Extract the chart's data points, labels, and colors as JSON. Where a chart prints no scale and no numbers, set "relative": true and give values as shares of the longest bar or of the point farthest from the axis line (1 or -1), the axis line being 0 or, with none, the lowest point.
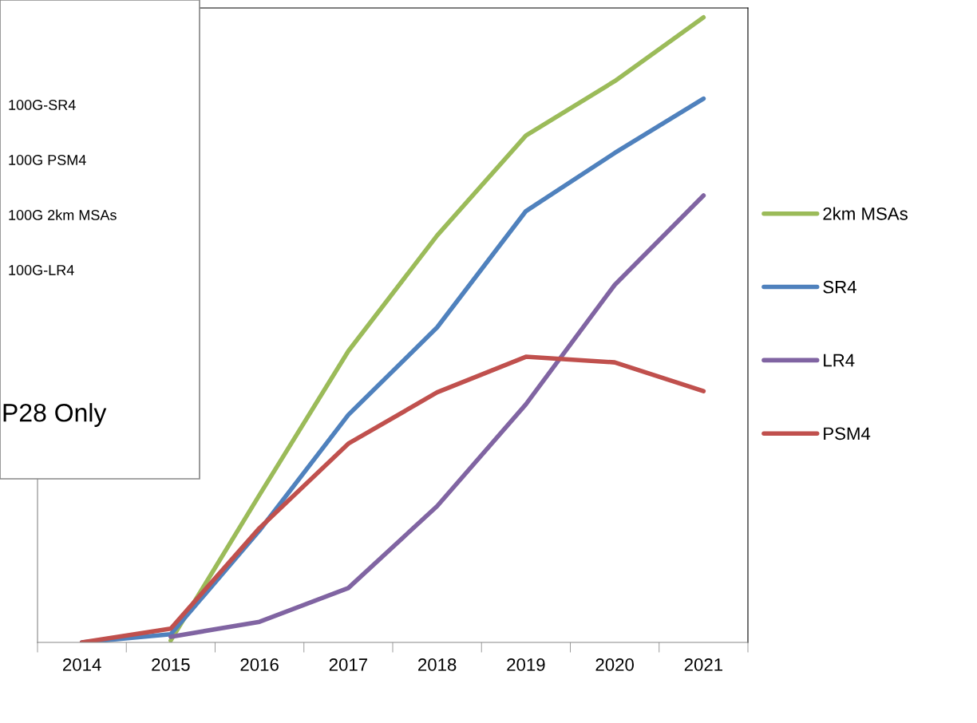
{
  "chart_data": {
    "type": "line",
    "relative": true,
    "categories": [
      "2014",
      "2015",
      "2016",
      "2017",
      "2018",
      "2019",
      "2020",
      "2021"
    ],
    "series": [
      {
        "name": "2km MSAs",
        "color": "#9bbb59",
        "values": [
          null,
          0.003,
          0.236,
          0.466,
          0.651,
          0.811,
          0.898,
          1
        ]
      },
      {
        "name": "SR4",
        "color": "#4f81bd",
        "values": [
          0,
          0.013,
          0.179,
          0.364,
          0.504,
          0.69,
          0.783,
          0.87
        ]
      },
      {
        "name": "LR4",
        "color": "#8064a2",
        "values": [
          null,
          0.009,
          0.033,
          0.087,
          0.218,
          0.381,
          0.572,
          0.715
        ]
      },
      {
        "name": "PSM4",
        "color": "#c0504d",
        "values": [
          0,
          0.022,
          0.183,
          0.318,
          0.4,
          0.457,
          0.448,
          0.402
        ]
      }
    ],
    "legend": "right",
    "grid": false,
    "marker": "none",
    "line_style": "solid",
    "annotations": [
      "100G-SR4",
      "100G PSM4",
      "100G 2km MSAs",
      "100G-LR4",
      "P28 Only"
    ]
  }
}
